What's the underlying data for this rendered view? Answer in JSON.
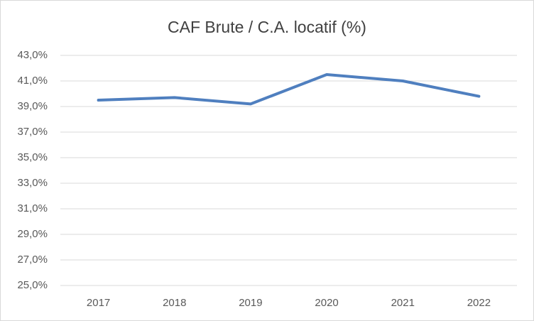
{
  "chart_data": {
    "type": "line",
    "title": "CAF Brute / C.A. locatif (%)",
    "categories": [
      "2017",
      "2018",
      "2019",
      "2020",
      "2021",
      "2022"
    ],
    "series": [
      {
        "name": "CAF Brute / C.A. locatif (%)",
        "color": "#4f7fbf",
        "values": [
          39.5,
          39.7,
          39.2,
          41.5,
          41.0,
          39.8
        ]
      }
    ],
    "ylim": [
      25,
      43
    ],
    "yticks": [
      {
        "value": 25,
        "label": "25,0%"
      },
      {
        "value": 27,
        "label": "27,0%"
      },
      {
        "value": 29,
        "label": "29,0%"
      },
      {
        "value": 31,
        "label": "31,0%"
      },
      {
        "value": 33,
        "label": "33,0%"
      },
      {
        "value": 35,
        "label": "35,0%"
      },
      {
        "value": 37,
        "label": "37,0%"
      },
      {
        "value": 39,
        "label": "39,0%"
      },
      {
        "value": 41,
        "label": "41,0%"
      },
      {
        "value": 43,
        "label": "43,0%"
      }
    ],
    "grid": true
  }
}
